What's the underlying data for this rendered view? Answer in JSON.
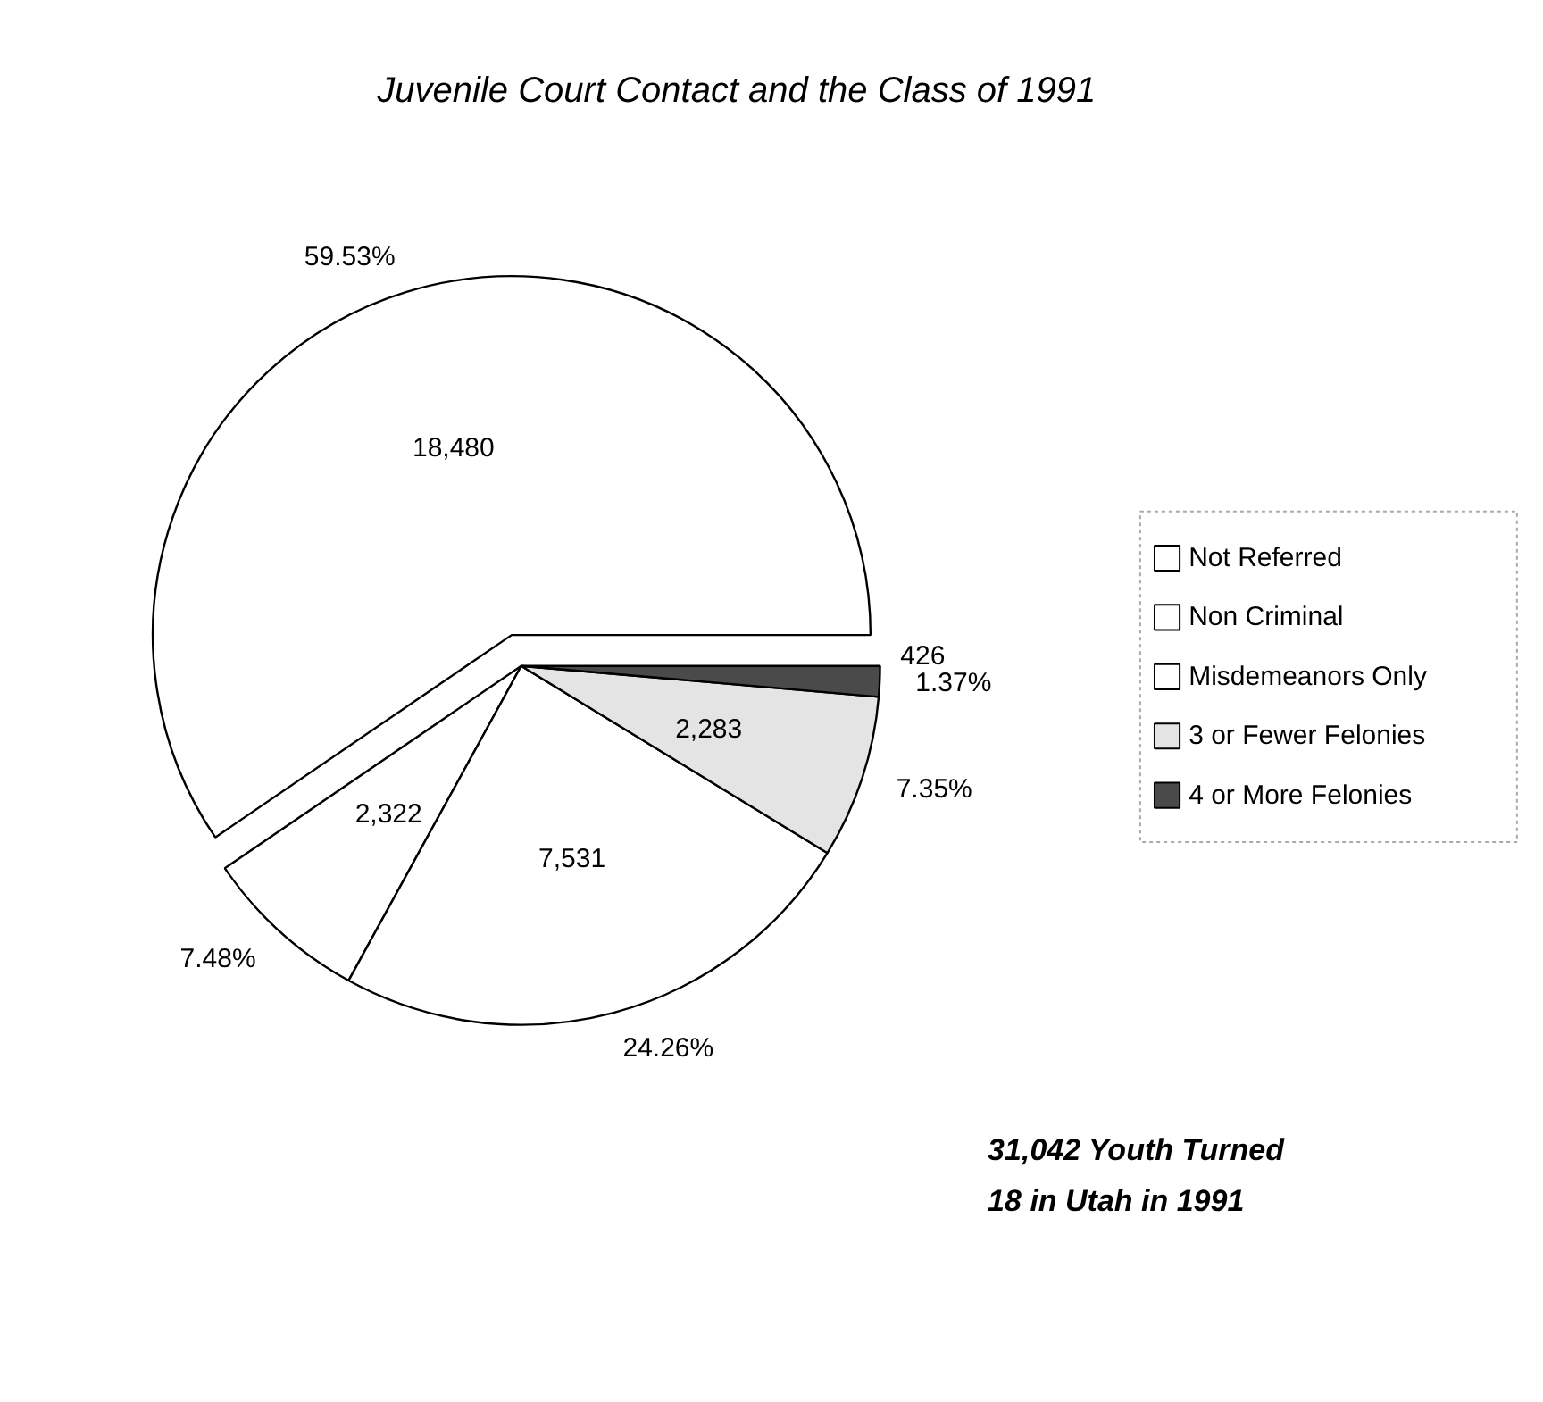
{
  "chart_data": {
    "type": "pie",
    "title": "Juvenile Court Contact and the Class of 1991",
    "categories": [
      "Not Referred",
      "Non Criminal",
      "Misdemeanors Only",
      "3 or Fewer Felonies",
      "4 or More Felonies"
    ],
    "values": [
      18480,
      2322,
      7531,
      2283,
      426
    ],
    "value_labels": [
      "18,480",
      "2,322",
      "7,531",
      "2,283",
      "426"
    ],
    "colors": [
      "#ffffff",
      "#ffffff",
      "#ffffff",
      "#e4e4e4",
      "#4a4a4a"
    ],
    "legend": "right",
    "annotations": [
      "59.53%",
      "7.48%",
      "24.26%",
      "7.35%",
      "1.37%",
      "31,042 Youth Turned\n18 in Utah in 1991"
    ]
  }
}
